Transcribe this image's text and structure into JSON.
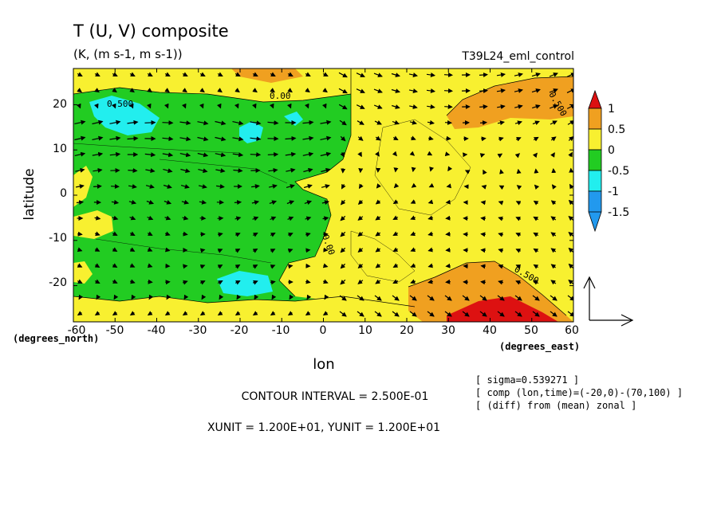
{
  "header": {
    "title": "T (U, V) composite",
    "units": "(K, (m s-1, m s-1))",
    "run": "T39L24_eml_control"
  },
  "footer": {
    "contour_interval": "CONTOUR INTERVAL = 2.500E-01",
    "units_line": "XUNIT = 1.200E+01, YUNIT = 1.200E+01",
    "notes": [
      "[ sigma=0.539271 ]",
      "[ comp (lon,time)=(-20,0)-(70,100) ]",
      "[ (diff) from (mean) zonal ]"
    ]
  },
  "chart_data": {
    "type": "heatmap",
    "title": "T (U, V) composite",
    "xlabel": "lon",
    "ylabel": "latitude",
    "x_unit_label": "(degrees_east)",
    "y_unit_label": "(degrees_north)",
    "xlim": [
      -60,
      60
    ],
    "ylim": [
      -28,
      28
    ],
    "x_ticks": [
      -60,
      -50,
      -40,
      -30,
      -20,
      -10,
      0,
      10,
      20,
      30,
      40,
      50,
      60
    ],
    "y_ticks": [
      -20,
      -10,
      0,
      10,
      20
    ],
    "x_tick_labels": [
      "-60",
      "-50",
      "-40",
      "-30",
      "-20",
      "-10",
      "0",
      "10",
      "20",
      "30",
      "40",
      "50",
      "60"
    ],
    "y_tick_labels": [
      "-20",
      "-10",
      "0",
      "10",
      "20"
    ],
    "contour_interval": 0.25,
    "contour_labels": [
      "0.500",
      "0.00",
      "0.500",
      "0.00",
      "0.500"
    ],
    "colorbar": {
      "ticks": [
        "1",
        "0.5",
        "0",
        "-0.5",
        "-1",
        "-1.5"
      ],
      "bins": [
        {
          "range": [
            1.0,
            1.5
          ],
          "color": "#dd1111"
        },
        {
          "range": [
            0.5,
            1.0
          ],
          "color": "#f0a020"
        },
        {
          "range": [
            0.0,
            0.5
          ],
          "color": "#f8f030"
        },
        {
          "range": [
            -0.5,
            0.0
          ],
          "color": "#22cc22"
        },
        {
          "range": [
            -1.0,
            -0.5
          ],
          "color": "#22eeee"
        },
        {
          "range": [
            -1.5,
            -1.0
          ],
          "color": "#2299ee"
        }
      ]
    },
    "field_description": "Temperature anomaly with wind vectors; warm (yellow) east of 0E, cool (green) west; orange warm cores near 40-55E at 20N and 20S; red core near 45E, 25S; cyan cool patches near -45E 20N, -20E 12N, -20E -20S.",
    "vector_reference": {
      "xunit": 12.0,
      "yunit": 12.0
    }
  }
}
